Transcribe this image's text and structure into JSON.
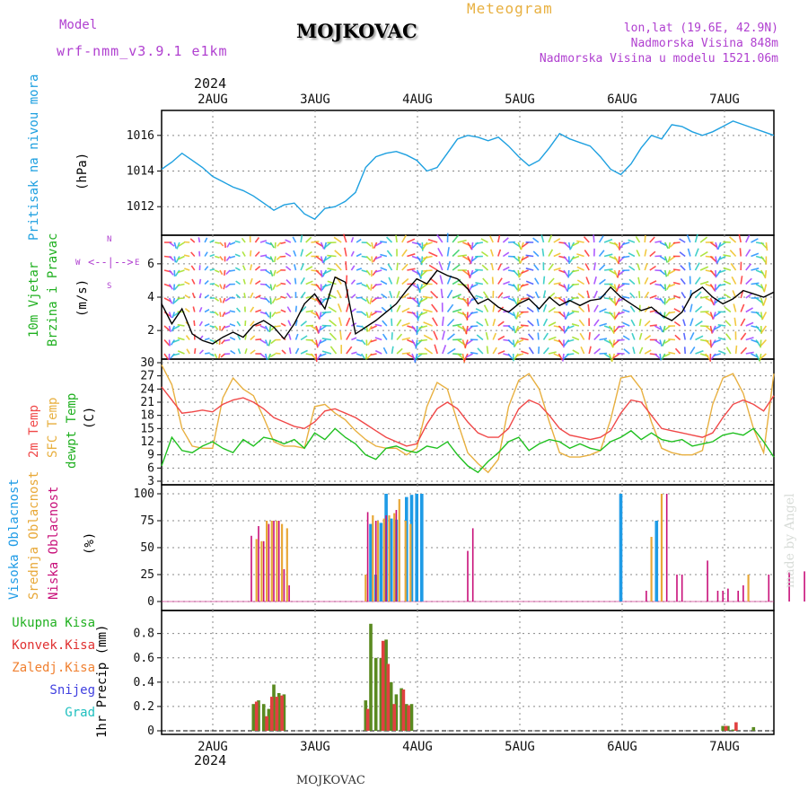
{
  "header": {
    "model_label": "Model",
    "model_name": "wrf-nmm_v3.9.1 e1km",
    "station": "MOJKOVAC",
    "product": "Meteogram",
    "coords": "lon,lat (19.6E, 42.9N)",
    "elevation": "Nadmorska Visina 848m",
    "model_elevation": "Nadmorska Visina u modelu 1521.06m",
    "footer_station": "MOJKOVAC",
    "watermark": "made by Angel"
  },
  "colors": {
    "pressure": "#1ea0e0",
    "temp2m": "#f04848",
    "sfc": "#e8b040",
    "dewpt": "#20c020",
    "high_cloud": "#1e9be6",
    "mid_cloud": "#e8a838",
    "low_cloud": "#c8107a",
    "total_precip": "#5a8a20",
    "conv_precip": "#e04040",
    "label_green": "#20b020",
    "label_red": "#e03030",
    "label_orange": "#f08030",
    "label_snow": "#4040e0",
    "label_hail": "#20c0c0",
    "label_purple": "#b040d0"
  },
  "chart_data": [
    {
      "type": "line",
      "panel": "pressure",
      "ylabel": [
        "Pritisak na nivou mora",
        "(hPa)"
      ],
      "ylim": [
        1010.6,
        1017.2
      ],
      "yticks": [
        1012,
        1014,
        1016
      ],
      "x": [
        0,
        0.1,
        0.2,
        0.3,
        0.4,
        0.5,
        0.6,
        0.7,
        0.8,
        0.9,
        1.0,
        1.1,
        1.2,
        1.3,
        1.4,
        1.5,
        1.6,
        1.7,
        1.8,
        1.9,
        2.0,
        2.1,
        2.2,
        2.3,
        2.4,
        2.5,
        2.6,
        2.7,
        2.8,
        2.9,
        3.0,
        3.1,
        3.2,
        3.3,
        3.4,
        3.5,
        3.6,
        3.7,
        3.8,
        3.9,
        4.0,
        4.1,
        4.2,
        4.3,
        4.4,
        4.5,
        4.6,
        4.7,
        4.8,
        4.9,
        5.0,
        5.1,
        5.2,
        5.3,
        5.4,
        5.5,
        5.6,
        5.7,
        5.8,
        5.9,
        6.0
      ],
      "series": [
        {
          "values": [
            1014.1,
            1014.5,
            1015.0,
            1014.6,
            1014.2,
            1013.7,
            1013.4,
            1013.1,
            1012.9,
            1012.6,
            1012.2,
            1011.8,
            1012.1,
            1012.2,
            1011.6,
            1011.3,
            1011.9,
            1012.0,
            1012.3,
            1012.8,
            1014.2,
            1014.8,
            1015.0,
            1015.1,
            1014.9,
            1014.6,
            1014.0,
            1014.2,
            1015.0,
            1015.8,
            1016.0,
            1015.9,
            1015.7,
            1015.9,
            1015.4,
            1014.8,
            1014.3,
            1014.6,
            1015.3,
            1016.1,
            1015.8,
            1015.6,
            1015.4,
            1014.8,
            1014.1,
            1013.8,
            1014.4,
            1015.3,
            1016.0,
            1015.8,
            1016.6,
            1016.5,
            1016.2,
            1016.0,
            1016.2,
            1016.5,
            1016.8,
            1016.6,
            1016.4,
            1016.2,
            1016.0
          ]
        }
      ]
    },
    {
      "type": "line",
      "panel": "wind",
      "ylabel": [
        "10m Vjetar",
        "Brzina i Pravac",
        "(m/s)"
      ],
      "ylim": [
        0.5,
        7.5
      ],
      "yticks": [
        2,
        4,
        6
      ],
      "x": [
        0,
        0.1,
        0.2,
        0.3,
        0.4,
        0.5,
        0.6,
        0.7,
        0.8,
        0.9,
        1.0,
        1.1,
        1.2,
        1.3,
        1.4,
        1.5,
        1.6,
        1.7,
        1.8,
        1.9,
        2.0,
        2.1,
        2.2,
        2.3,
        2.4,
        2.5,
        2.6,
        2.7,
        2.8,
        2.9,
        3.0,
        3.1,
        3.2,
        3.3,
        3.4,
        3.5,
        3.6,
        3.7,
        3.8,
        3.9,
        4.0,
        4.1,
        4.2,
        4.3,
        4.4,
        4.5,
        4.6,
        4.7,
        4.8,
        4.9,
        5.0,
        5.1,
        5.2,
        5.3,
        5.4,
        5.5,
        5.6,
        5.7,
        5.8,
        5.9,
        6.0
      ],
      "series": [
        {
          "values": [
            3.6,
            2.4,
            3.3,
            1.8,
            1.4,
            1.2,
            1.6,
            1.9,
            1.6,
            2.3,
            2.6,
            2.2,
            1.5,
            2.4,
            3.6,
            4.2,
            3.3,
            5.2,
            4.9,
            1.8,
            2.2,
            2.6,
            3.1,
            3.6,
            4.4,
            5.1,
            4.8,
            5.6,
            5.3,
            5.1,
            4.5,
            3.6,
            3.9,
            3.4,
            3.1,
            3.6,
            3.9,
            3.3,
            4.0,
            3.5,
            3.8,
            3.5,
            3.8,
            3.9,
            4.6,
            4.0,
            3.6,
            3.2,
            3.4,
            2.9,
            2.6,
            3.1,
            4.2,
            4.6,
            4.0,
            3.6,
            3.9,
            4.4,
            4.2,
            4.0,
            4.3
          ]
        }
      ],
      "compass": [
        "N",
        "W",
        "E",
        "S"
      ]
    },
    {
      "type": "line",
      "panel": "temperature",
      "ylabel": [
        "2m Temp",
        "SFC Temp",
        "dewpt Temp",
        "(C)"
      ],
      "ylim": [
        3,
        30
      ],
      "yticks": [
        3,
        6,
        9,
        12,
        15,
        18,
        21,
        24,
        27,
        30
      ],
      "x": [
        0,
        0.1,
        0.2,
        0.3,
        0.4,
        0.5,
        0.6,
        0.7,
        0.8,
        0.9,
        1.0,
        1.1,
        1.2,
        1.3,
        1.4,
        1.5,
        1.6,
        1.7,
        1.8,
        1.9,
        2.0,
        2.1,
        2.2,
        2.3,
        2.4,
        2.5,
        2.6,
        2.7,
        2.8,
        2.9,
        3.0,
        3.1,
        3.2,
        3.3,
        3.4,
        3.5,
        3.6,
        3.7,
        3.8,
        3.9,
        4.0,
        4.1,
        4.2,
        4.3,
        4.4,
        4.5,
        4.6,
        4.7,
        4.8,
        4.9,
        5.0,
        5.1,
        5.2,
        5.3,
        5.4,
        5.5,
        5.6,
        5.7,
        5.8,
        5.9,
        6.0
      ],
      "series": [
        {
          "name": "2m Temp",
          "values": [
            24.5,
            21.5,
            18.5,
            18.8,
            19.2,
            18.8,
            20.5,
            21.5,
            22.0,
            21.0,
            19.5,
            17.5,
            16.5,
            15.5,
            15.0,
            16.5,
            19.0,
            19.5,
            18.5,
            17.5,
            16.0,
            14.5,
            13.0,
            12.0,
            11.0,
            11.5,
            16.0,
            19.5,
            21.0,
            19.5,
            16.5,
            14.0,
            13.0,
            13.0,
            15.0,
            19.5,
            21.5,
            20.5,
            18.0,
            15.0,
            13.5,
            13.0,
            12.5,
            13.0,
            14.5,
            18.5,
            21.5,
            21.0,
            18.0,
            15.0,
            14.5,
            14.0,
            13.5,
            13.0,
            14.0,
            17.5,
            20.5,
            21.5,
            20.5,
            19.0,
            22.5
          ]
        },
        {
          "name": "SFC Temp",
          "values": [
            29.5,
            25.0,
            15.0,
            11.0,
            10.5,
            10.5,
            22.0,
            26.5,
            24.0,
            22.5,
            17.5,
            12.0,
            11.0,
            11.0,
            10.5,
            20.0,
            20.5,
            18.5,
            17.0,
            14.5,
            12.5,
            11.0,
            10.5,
            10.5,
            9.0,
            10.5,
            20.0,
            25.5,
            24.0,
            16.5,
            9.5,
            7.0,
            5.0,
            8.0,
            20.0,
            26.0,
            27.5,
            24.0,
            16.5,
            9.5,
            8.5,
            8.5,
            9.0,
            10.0,
            17.0,
            26.5,
            27.0,
            24.0,
            16.5,
            10.5,
            9.5,
            9.0,
            9.0,
            10.0,
            20.5,
            26.5,
            27.5,
            23.0,
            15.0,
            9.5,
            27.5
          ]
        },
        {
          "name": "dewpt Temp",
          "values": [
            6.5,
            13.0,
            10.0,
            9.5,
            11.0,
            12.0,
            10.5,
            9.5,
            12.5,
            11.0,
            13.0,
            12.5,
            11.5,
            12.5,
            10.5,
            14.0,
            12.5,
            15.0,
            13.0,
            11.5,
            9.0,
            8.0,
            10.5,
            11.0,
            10.0,
            9.5,
            11.0,
            10.5,
            12.0,
            9.0,
            6.5,
            5.0,
            7.5,
            9.5,
            12.0,
            13.0,
            10.0,
            11.5,
            12.5,
            12.0,
            10.5,
            11.5,
            10.5,
            10.0,
            12.0,
            13.0,
            14.5,
            12.5,
            14.0,
            12.5,
            12.0,
            12.5,
            11.0,
            11.5,
            12.0,
            13.5,
            14.0,
            13.5,
            15.0,
            12.0,
            8.5
          ]
        }
      ]
    },
    {
      "type": "bar",
      "panel": "cloud",
      "ylabel": [
        "Visoka Oblacnost",
        "Srednja Oblacnost",
        "Niska Oblacnost",
        "(%)"
      ],
      "ylim": [
        -5,
        105
      ],
      "yticks": [
        0,
        25,
        50,
        75,
        100
      ],
      "series": [
        {
          "name": "Visoka Oblacnost",
          "x": [
            2.05,
            2.1,
            2.15,
            2.2,
            2.25,
            2.3,
            2.4,
            2.45,
            2.5,
            2.55,
            4.5,
            4.85
          ],
          "values": [
            72,
            25,
            73,
            100,
            77,
            76,
            97,
            99,
            100,
            100,
            100,
            75
          ]
        },
        {
          "name": "Srednja Oblacnost",
          "x": [
            0.93,
            0.98,
            1.03,
            1.08,
            1.13,
            1.18,
            1.23,
            2.0,
            2.07,
            2.12,
            2.18,
            2.23,
            2.28,
            2.33,
            2.39,
            2.44,
            4.8,
            4.9,
            5.75
          ],
          "values": [
            58,
            56,
            75,
            75,
            75,
            72,
            68,
            25,
            80,
            75,
            77,
            80,
            82,
            95,
            75,
            72,
            60,
            100,
            25
          ]
        },
        {
          "name": "Niska Oblacnost",
          "x": [
            0.88,
            0.95,
            1.0,
            1.05,
            1.1,
            1.15,
            1.2,
            1.25,
            2.02,
            2.1,
            2.2,
            2.3,
            3.0,
            3.05,
            4.75,
            4.95,
            5.05,
            5.1,
            5.35,
            5.45,
            5.5,
            5.55,
            5.65,
            5.7,
            5.95,
            6.15,
            6.3,
            6.45,
            6.5
          ],
          "values": [
            61,
            70,
            56,
            72,
            75,
            75,
            30,
            15,
            83,
            75,
            80,
            85,
            47,
            68,
            10,
            100,
            25,
            25,
            38,
            10,
            10,
            12,
            10,
            15,
            25,
            27,
            28,
            10,
            10
          ]
        }
      ]
    },
    {
      "type": "bar",
      "panel": "precip",
      "ylabel": [
        "1hr Precip (mm)"
      ],
      "legend": [
        "Ukupna Kisa",
        "Konvek.Kisa",
        "Zaledj.Kisa",
        "Snijeg",
        "Grad"
      ],
      "ylim": [
        0,
        0.96
      ],
      "yticks": [
        0,
        0.2,
        0.4,
        0.6,
        0.8
      ],
      "series": [
        {
          "name": "Ukupna Kisa",
          "x": [
            0.9,
            0.95,
            1.0,
            1.05,
            1.1,
            1.15,
            1.2,
            2.0,
            2.05,
            2.1,
            2.15,
            2.2,
            2.25,
            2.3,
            2.35,
            2.4,
            2.45,
            5.5,
            5.55,
            5.6,
            5.8
          ],
          "values": [
            0.22,
            0.25,
            0.22,
            0.18,
            0.38,
            0.31,
            0.3,
            0.25,
            0.88,
            0.6,
            0.6,
            0.75,
            0.4,
            0.3,
            0.35,
            0.22,
            0.22,
            0.04,
            0.04,
            0.01,
            0.03
          ]
        },
        {
          "name": "Konvek.Kisa",
          "x": [
            0.93,
            1.03,
            1.08,
            1.13,
            1.18,
            2.02,
            2.17,
            2.22,
            2.28,
            2.37,
            2.42,
            5.53,
            5.63
          ],
          "values": [
            0.24,
            0.12,
            0.28,
            0.28,
            0.29,
            0.18,
            0.74,
            0.55,
            0.22,
            0.34,
            0.21,
            0.04,
            0.07
          ]
        }
      ]
    }
  ],
  "time_axis": {
    "top_year": "2024",
    "bottom_year": "2024",
    "days": [
      "2AUG",
      "3AUG",
      "4AUG",
      "5AUG",
      "6AUG",
      "7AUG"
    ]
  }
}
